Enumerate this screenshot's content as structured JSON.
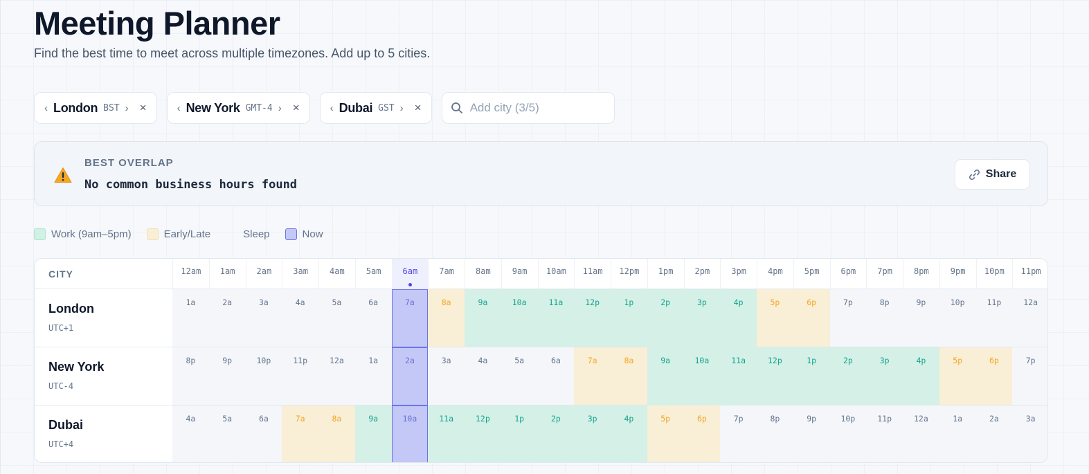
{
  "header": {
    "title": "Meeting Planner",
    "subtitle": "Find the best time to meet across multiple timezones. Add up to 5 cities."
  },
  "cities": [
    {
      "name": "London",
      "abbr": "BST",
      "offset": "UTC+1"
    },
    {
      "name": "New York",
      "abbr": "GMT-4",
      "offset": "UTC-4"
    },
    {
      "name": "Dubai",
      "abbr": "GST",
      "offset": "UTC+4"
    }
  ],
  "chip_glyphs": {
    "prev": "‹",
    "next": "›",
    "close": "×"
  },
  "add_city": {
    "placeholder": "Add city (3/5)"
  },
  "overlap": {
    "label": "BEST OVERLAP",
    "message": "No common business hours found",
    "icon": "warning-icon"
  },
  "share_label": "Share",
  "legend": [
    {
      "key": "work",
      "label": "Work (9am–5pm)"
    },
    {
      "key": "early",
      "label": "Early/Late"
    },
    {
      "key": "sleep",
      "label": "Sleep"
    },
    {
      "key": "now",
      "label": "Now"
    }
  ],
  "grid": {
    "city_header": "CITY",
    "now_index": 6,
    "hours": [
      "12am",
      "1am",
      "2am",
      "3am",
      "4am",
      "5am",
      "6am",
      "7am",
      "8am",
      "9am",
      "10am",
      "11am",
      "12pm",
      "1pm",
      "2pm",
      "3pm",
      "4pm",
      "5pm",
      "6pm",
      "7pm",
      "8pm",
      "9pm",
      "10pm",
      "11pm"
    ],
    "rows": [
      {
        "city": "London",
        "offset": "UTC+1",
        "cells": [
          "1a",
          "2a",
          "3a",
          "4a",
          "5a",
          "6a",
          "7a",
          "8a",
          "9a",
          "10a",
          "11a",
          "12p",
          "1p",
          "2p",
          "3p",
          "4p",
          "5p",
          "6p",
          "7p",
          "8p",
          "9p",
          "10p",
          "11p",
          "12a"
        ],
        "status": [
          "sleep",
          "sleep",
          "sleep",
          "sleep",
          "sleep",
          "sleep",
          "early",
          "early",
          "work",
          "work",
          "work",
          "work",
          "work",
          "work",
          "work",
          "work",
          "early",
          "early",
          "sleep",
          "sleep",
          "sleep",
          "sleep",
          "sleep",
          "sleep"
        ]
      },
      {
        "city": "New York",
        "offset": "UTC-4",
        "cells": [
          "8p",
          "9p",
          "10p",
          "11p",
          "12a",
          "1a",
          "2a",
          "3a",
          "4a",
          "5a",
          "6a",
          "7a",
          "8a",
          "9a",
          "10a",
          "11a",
          "12p",
          "1p",
          "2p",
          "3p",
          "4p",
          "5p",
          "6p",
          "7p"
        ],
        "status": [
          "sleep",
          "sleep",
          "sleep",
          "sleep",
          "sleep",
          "sleep",
          "sleep",
          "sleep",
          "sleep",
          "sleep",
          "sleep",
          "early",
          "early",
          "work",
          "work",
          "work",
          "work",
          "work",
          "work",
          "work",
          "work",
          "early",
          "early",
          "sleep"
        ]
      },
      {
        "city": "Dubai",
        "offset": "UTC+4",
        "cells": [
          "4a",
          "5a",
          "6a",
          "7a",
          "8a",
          "9a",
          "10a",
          "11a",
          "12p",
          "1p",
          "2p",
          "3p",
          "4p",
          "5p",
          "6p",
          "7p",
          "8p",
          "9p",
          "10p",
          "11p",
          "12a",
          "1a",
          "2a",
          "3a"
        ],
        "status": [
          "sleep",
          "sleep",
          "sleep",
          "early",
          "early",
          "work",
          "work",
          "work",
          "work",
          "work",
          "work",
          "work",
          "work",
          "early",
          "early",
          "sleep",
          "sleep",
          "sleep",
          "sleep",
          "sleep",
          "sleep",
          "sleep",
          "sleep",
          "sleep"
        ]
      }
    ]
  },
  "colors": {
    "work": "#d4f0e7",
    "early": "#f9eed6",
    "now": "#c4c8f6",
    "accent": "#4f46e5"
  }
}
